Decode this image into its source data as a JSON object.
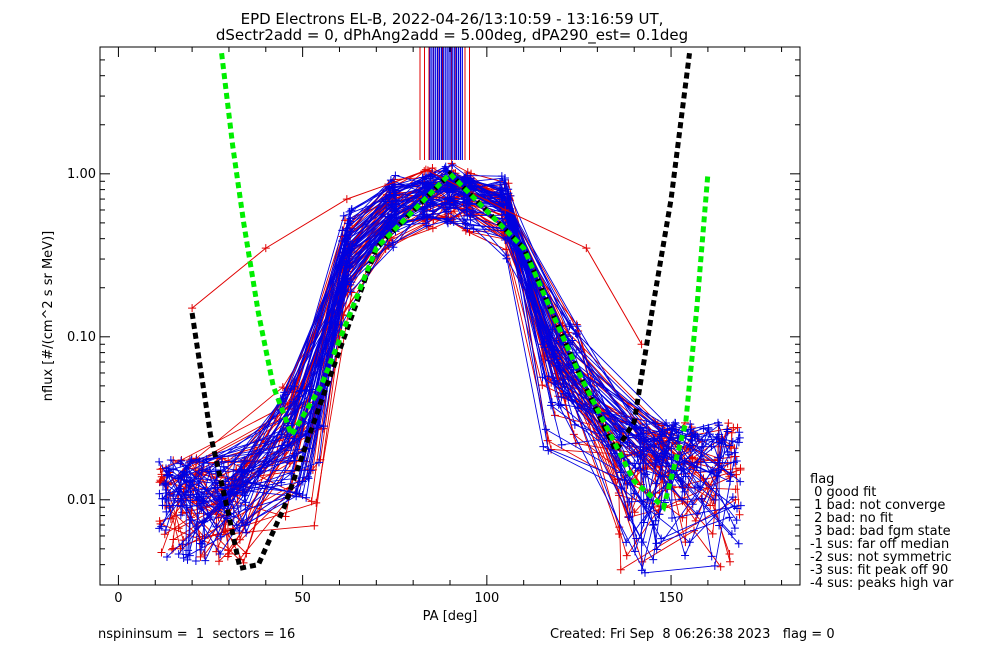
{
  "chart_data": {
    "type": "line",
    "title_line1": "EPD Electrons EL-B, 2022-04-26/13:10:59 - 13:16:59 UT,",
    "title_line2": "dSectr2add = 0, dPhAng2add = 5.00deg, dPA290_est=   0.1deg",
    "xlabel": "PA [deg]",
    "ylabel": "nflux [#/(cm^2 s sr MeV)]",
    "x_ticks": [
      "0",
      "50",
      "100",
      "150"
    ],
    "y_ticks": [
      "0.01",
      "0.10",
      "1.00"
    ],
    "xlim": [
      -5,
      185
    ],
    "ylim": [
      0.003,
      6.0
    ],
    "y_scale": "log",
    "grid": false,
    "series_colors": {
      "red": "#e00000",
      "blue": "#0000e0",
      "green": "#00ee00",
      "black": "#000000"
    },
    "red_reference_curve": [
      [
        20,
        0.15
      ],
      [
        40,
        0.35
      ],
      [
        62,
        0.7
      ],
      [
        84,
        1.05
      ],
      [
        105,
        0.6
      ],
      [
        127,
        0.35
      ],
      [
        142,
        0.09
      ]
    ],
    "black_dashed_fit": [
      [
        20,
        0.14
      ],
      [
        22,
        0.07
      ],
      [
        25,
        0.025
      ],
      [
        30,
        0.008
      ],
      [
        33,
        0.0038
      ],
      [
        38,
        0.004
      ],
      [
        45,
        0.009
      ],
      [
        55,
        0.04
      ],
      [
        70,
        0.35
      ],
      [
        90,
        1.0
      ],
      [
        110,
        0.35
      ],
      [
        125,
        0.06
      ],
      [
        135,
        0.02
      ],
      [
        140,
        0.03
      ],
      [
        145,
        0.15
      ],
      [
        150,
        0.7
      ],
      [
        155,
        5.5
      ]
    ],
    "green_dashed_fit": [
      [
        28,
        5.5
      ],
      [
        31,
        1.5
      ],
      [
        34,
        0.5
      ],
      [
        38,
        0.14
      ],
      [
        42,
        0.05
      ],
      [
        47,
        0.025
      ],
      [
        55,
        0.05
      ],
      [
        70,
        0.35
      ],
      [
        90,
        1.0
      ],
      [
        110,
        0.35
      ],
      [
        125,
        0.06
      ],
      [
        140,
        0.013
      ],
      [
        148,
        0.009
      ],
      [
        154,
        0.03
      ],
      [
        157,
        0.15
      ],
      [
        160,
        1.0
      ]
    ],
    "legend_position": "right",
    "legend": {
      "title": "flag",
      "items": [
        " 0 good fit",
        " 1 bad: not converge",
        " 2 bad: no fit",
        " 3 bad: bad fgm state",
        "-1 sus: far off median",
        "-2 sus: not symmetric",
        "-3 sus: fit peak off 90",
        "-4 sus: peaks high var"
      ]
    }
  },
  "footer": {
    "left": "nspininsum =  1  sectors = 16",
    "right": "Created: Fri Sep  8 06:26:38 2023   flag = 0"
  }
}
